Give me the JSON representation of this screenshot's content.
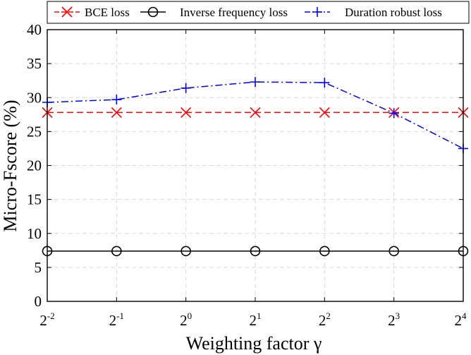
{
  "chart_data": {
    "type": "line",
    "x_tick_labels": [
      {
        "base": "2",
        "exp": "-2"
      },
      {
        "base": "2",
        "exp": "-1"
      },
      {
        "base": "2",
        "exp": "0"
      },
      {
        "base": "2",
        "exp": "1"
      },
      {
        "base": "2",
        "exp": "2"
      },
      {
        "base": "2",
        "exp": "3"
      },
      {
        "base": "2",
        "exp": "4"
      }
    ],
    "x": [
      -2,
      -1,
      0,
      1,
      2,
      3,
      4
    ],
    "xlabel": "Weighting factor γ",
    "ylabel": "Micro-Fscore (%)",
    "ylim": [
      0,
      40
    ],
    "y_ticks": [
      0,
      5,
      10,
      15,
      20,
      25,
      30,
      35,
      40
    ],
    "grid": true,
    "legend_position": "top",
    "series": [
      {
        "name": "BCE loss",
        "color": "#ff0000",
        "line": "dashed",
        "marker": "x-cross",
        "values": [
          27.8,
          27.8,
          27.8,
          27.8,
          27.8,
          27.8,
          27.8
        ]
      },
      {
        "name": "Inverse frequency loss",
        "color": "#000000",
        "line": "solid",
        "marker": "circle",
        "values": [
          7.4,
          7.4,
          7.4,
          7.4,
          7.4,
          7.4,
          7.4
        ]
      },
      {
        "name": "Duration robust loss",
        "color": "#0000ff",
        "line": "dash-dot",
        "marker": "plus",
        "values": [
          29.3,
          29.7,
          31.4,
          32.3,
          32.2,
          27.7,
          22.5
        ]
      }
    ]
  }
}
